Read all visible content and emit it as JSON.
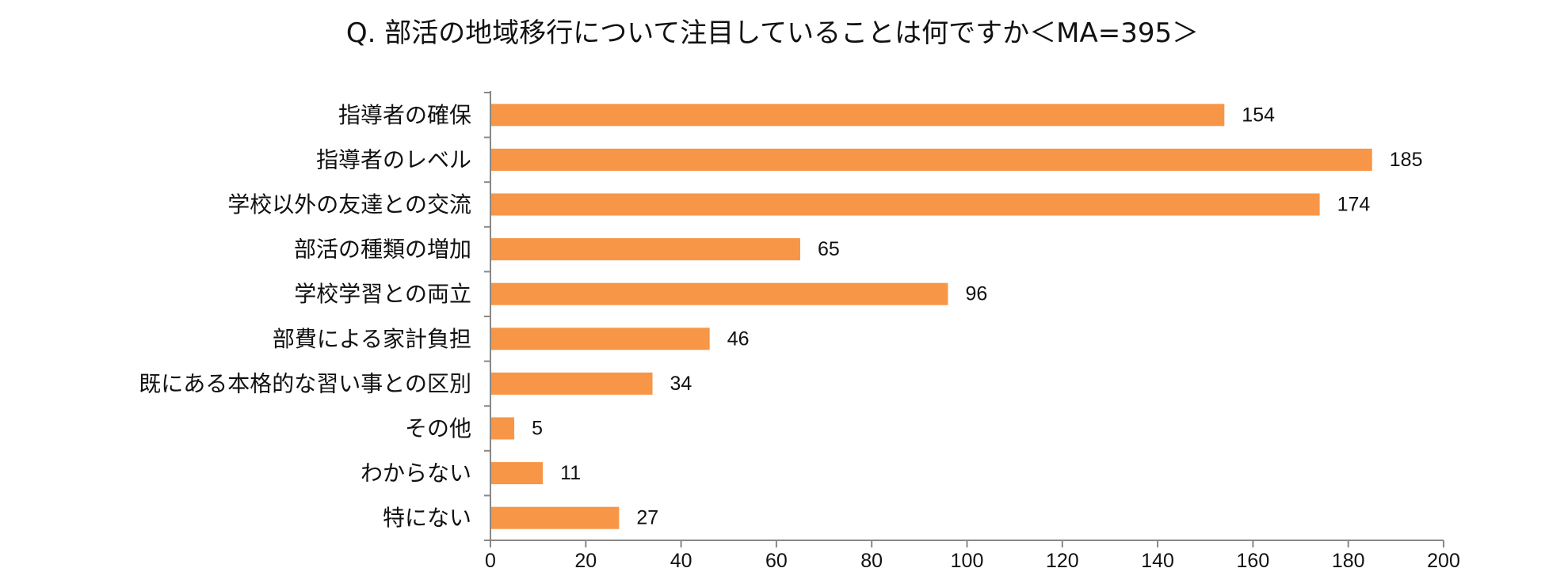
{
  "chart_data": {
    "type": "bar",
    "orientation": "horizontal",
    "title": "Q. 部活の地域移行について注目していることは何ですか＜MA=395＞",
    "categories": [
      "指導者の確保",
      "指導者のレベル",
      "学校以外の友達との交流",
      "部活の種類の増加",
      "学校学習との両立",
      "部費による家計負担",
      "既にある本格的な習い事との区別",
      "その他",
      "わからない",
      "特にない"
    ],
    "values": [
      154,
      185,
      174,
      65,
      96,
      46,
      34,
      5,
      11,
      27
    ],
    "xlim": [
      0,
      200
    ],
    "xticks": [
      "0",
      "20",
      "40",
      "60",
      "80",
      "100",
      "120",
      "140",
      "160",
      "180",
      "200"
    ],
    "bar_color": "#F79646",
    "grid": false,
    "legend": "none"
  }
}
